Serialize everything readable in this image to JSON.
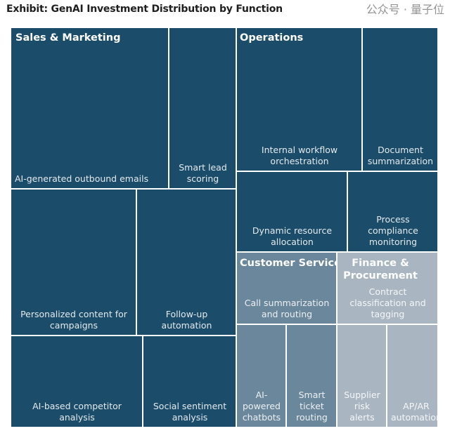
{
  "chart_data": {
    "type": "treemap",
    "title": "Exhibit: GenAI Investment Distribution by Function",
    "colors": {
      "Sales & Marketing": "#1b4d6b",
      "Operations": "#1b4d6b",
      "Customer Service": "#6a879c",
      "Finance & Procurement": "#a9b6c1"
    },
    "groups": [
      {
        "name": "Sales & Marketing",
        "items": [
          "AI-generated outbound emails",
          "Smart lead scoring",
          "Personalized content for campaigns",
          "Follow-up automation",
          "AI-based competitor analysis",
          "Social sentiment analysis"
        ]
      },
      {
        "name": "Operations",
        "items": [
          "Internal workflow orchestration",
          "Document summarization",
          "Dynamic resource allocation",
          "Process compliance monitoring"
        ]
      },
      {
        "name": "Customer Service",
        "items": [
          "Call summarization and routing",
          "AI-powered chatbots",
          "Smart ticket routing"
        ]
      },
      {
        "name": "Finance & Procurement",
        "items": [
          "Contract classification and tagging",
          "Supplier risk alerts",
          "AP/AR automation"
        ]
      }
    ]
  },
  "watermark": "公众号 · 量子位"
}
